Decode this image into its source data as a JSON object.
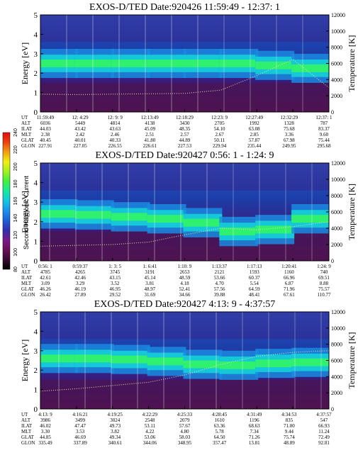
{
  "colorbar": {
    "label": "Second Harmonic Current",
    "ticks": [
      "80",
      "100",
      "120",
      "140",
      "160",
      "180",
      "200",
      "220",
      "240"
    ],
    "colors": [
      "#000000",
      "#3a0a30",
      "#6a0f5a",
      "#7a1a8a",
      "#3030b0",
      "#1e60d8",
      "#1a90f0",
      "#10c8e0",
      "#18e8a0",
      "#40f040",
      "#a0f020",
      "#f0f010",
      "#f0a010",
      "#f04010",
      "#e01010"
    ]
  },
  "chart_data": [
    {
      "type": "heatmap",
      "title": "EXOS-D/TED   Date:920426  11:59:49 - 12:37: 1",
      "ylabel": "Energy [eV]",
      "y2label": "Temperature [K]",
      "ylim": [
        0,
        5
      ],
      "y2lim": [
        0,
        12000
      ],
      "yticks": [
        "0",
        "1",
        "2",
        "3",
        "4",
        "5"
      ],
      "y2ticks": [
        "0",
        "2000",
        "4000",
        "6000",
        "8000",
        "10000",
        "12000"
      ],
      "table": {
        "rows": [
          "UT",
          "ALT",
          "ILAT",
          "MLT",
          "GLAT",
          "GLON"
        ],
        "cols": [
          [
            "11:59:49",
            "6036",
            "44.03",
            "2.38",
            "40.45",
            "227.91"
          ],
          [
            "12: 4:29",
            "5449",
            "43.42",
            "2.42",
            "40.01",
            "227.05"
          ],
          [
            "12: 9: 9",
            "4814",
            "43.63",
            "2.46",
            "40.33",
            "226.55"
          ],
          [
            "12:13:49",
            "4138",
            "45.09",
            "2.51",
            "41.80",
            "226.61"
          ],
          [
            "12:18:29",
            "3430",
            "48.35",
            "2.57",
            "44.89",
            "227.53"
          ],
          [
            "12:23: 9",
            "2705",
            "54.10",
            "2.67",
            "50.11",
            "229.94"
          ],
          [
            "12:27:49",
            "1992",
            "63.08",
            "2.85",
            "57.87",
            "235.44"
          ],
          [
            "12:32:29",
            "1328",
            "75.68",
            "3.36",
            "67.98",
            "249.95"
          ],
          [
            "12:37: 1",
            "787",
            "83.37",
            "9.60",
            "75.44",
            "295.68"
          ]
        ]
      },
      "band_center_ev": [
        2.5,
        2.5,
        2.5,
        2.5,
        2.5,
        2.5,
        2.5,
        2.3,
        2.2
      ],
      "temperature_k": [
        2200,
        2150,
        2200,
        2250,
        2300,
        2700,
        4500,
        6500,
        3000
      ]
    },
    {
      "type": "heatmap",
      "title": "EXOS-D/TED   Date:920427  0:56: 1 - 1:24: 9",
      "ylabel": "Energy [eV]",
      "y2label": "Temperature [K]",
      "ylim": [
        0,
        5
      ],
      "y2lim": [
        0,
        12000
      ],
      "yticks": [
        "0",
        "1",
        "2",
        "3",
        "4",
        "5"
      ],
      "y2ticks": [
        "0",
        "2000",
        "4000",
        "6000",
        "8000",
        "10000",
        "12000"
      ],
      "table": {
        "rows": [
          "UT",
          "ALT",
          "ILAT",
          "MLT",
          "GLAT",
          "GLON"
        ],
        "cols": [
          [
            "0:56: 1",
            "4785",
            "42.61",
            "3.09",
            "46.26",
            "26.42"
          ],
          [
            "0:59:37",
            "4265",
            "42.46",
            "3.29",
            "46.19",
            "27.89"
          ],
          [
            "1: 3: 5",
            "3745",
            "43.15",
            "3.52",
            "46.95",
            "29.52"
          ],
          [
            "1: 6:41",
            "3191",
            "45.14",
            "3.81",
            "48.97",
            "31.69"
          ],
          [
            "1:10: 9",
            "2653",
            "48.59",
            "4.18",
            "52.41",
            "34.66"
          ],
          [
            "1:13:37",
            "2121",
            "53.66",
            "4.70",
            "57.56",
            "39.88"
          ],
          [
            "1:17:13",
            "1593",
            "60.37",
            "5.54",
            "64.59",
            "48.41"
          ],
          [
            "1:20:41",
            "1160",
            "66.96",
            "6.87",
            "71.96",
            "67.61"
          ],
          [
            "1:24: 9",
            "740",
            "69.51",
            "8.88",
            "75.57",
            "110.77"
          ]
        ]
      },
      "band_center_ev": [
        2.4,
        2.4,
        2.3,
        2.2,
        2.1,
        1.8,
        1.2,
        2.0,
        2.3
      ],
      "temperature_k": [
        1800,
        1900,
        2000,
        2300,
        3200,
        4000,
        3800,
        4200,
        4800
      ]
    },
    {
      "type": "heatmap",
      "title": "EXOS-D/TED   Date:920427  4:13: 9 - 4:37:57",
      "ylabel": "Energy [eV]",
      "y2label": "Temperature [K]",
      "ylim": [
        0,
        5
      ],
      "y2lim": [
        0,
        12000
      ],
      "yticks": [
        "0",
        "1",
        "2",
        "3",
        "4",
        "5"
      ],
      "y2ticks": [
        "0",
        "2000",
        "4000",
        "6000",
        "8000",
        "10000",
        "12000"
      ],
      "table": {
        "rows": [
          "UT",
          "ALT",
          "ILAT",
          "MLT",
          "GLAT",
          "GLON"
        ],
        "cols": [
          [
            "4:13: 9",
            "3986",
            "46.02",
            "3.30",
            "44.85",
            "335.49"
          ],
          [
            "4:16:21",
            "3499",
            "47.47",
            "3.53",
            "46.69",
            "337.89"
          ],
          [
            "4:19:25",
            "3024",
            "49.73",
            "3.82",
            "49.34",
            "340.61"
          ],
          [
            "4:22:29",
            "2548",
            "53.11",
            "4.22",
            "53.06",
            "344.06"
          ],
          [
            "4:25:33",
            "2079",
            "57.67",
            "4.80",
            "58.03",
            "348.95"
          ],
          [
            "4:28:45",
            "1610",
            "63.36",
            "5.78",
            "64.50",
            "357.47"
          ],
          [
            "4:31:49",
            "1196",
            "68.63",
            "7.34",
            "71.26",
            "13.81"
          ],
          [
            "4:34:53",
            "835",
            "71.00",
            "9.44",
            "75.74",
            "48.89"
          ],
          [
            "4:37:57",
            "547",
            "66.93",
            "11.24",
            "72.49",
            "92.81"
          ]
        ]
      },
      "band_center_ev": [
        2.6,
        2.6,
        2.6,
        2.5,
        2.4,
        2.2,
        2.3,
        2.4,
        2.4
      ],
      "temperature_k": [
        2200,
        2500,
        2900,
        3300,
        4200,
        5500,
        6500,
        7000,
        7200
      ]
    }
  ]
}
